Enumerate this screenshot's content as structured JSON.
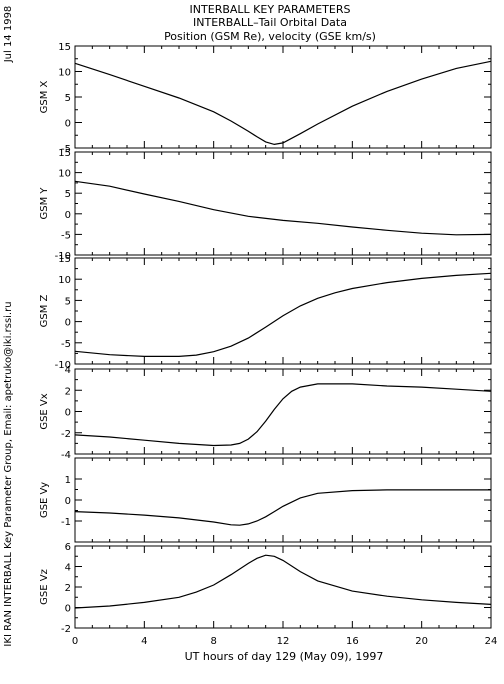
{
  "title_lines": [
    "INTERBALL KEY PARAMETERS",
    "INTERBALL–Tail Orbital Data",
    "Position (GSM Re), velocity (GSE km/s)"
  ],
  "side_date": "Jul 14 1998",
  "side_credit": "IKI RAN INTERBALL Key Parameter Group, Email: apetruko@iki.rssi.ru",
  "chart_data": {
    "type": "line",
    "xlabel": "UT hours of day 129 (May 09), 1997",
    "xlim": [
      0,
      24
    ],
    "xticks": [
      0,
      4,
      8,
      12,
      16,
      20,
      24
    ],
    "xtick_labels": [
      "0",
      "4",
      "8",
      "12",
      "16",
      "20",
      "24"
    ],
    "panels": [
      {
        "name": "gsm-x",
        "ylabel": "GSM X",
        "ylim": [
          -5,
          15
        ],
        "yticks": [
          -5,
          0,
          5,
          10,
          15
        ],
        "ytick_labels": [
          "-5",
          "0",
          "5",
          "10",
          "15"
        ],
        "x": [
          0,
          2,
          4,
          6,
          8,
          9,
          10,
          10.5,
          11,
          11.5,
          12,
          13,
          14,
          16,
          18,
          20,
          22,
          24
        ],
        "y": [
          11.6,
          9.4,
          7.1,
          4.8,
          2.1,
          0.3,
          -1.7,
          -2.8,
          -3.8,
          -4.3,
          -4.0,
          -2.2,
          -0.3,
          3.2,
          6.1,
          8.5,
          10.6,
          12.0
        ]
      },
      {
        "name": "gsm-y",
        "ylabel": "GSM Y",
        "ylim": [
          -10,
          15
        ],
        "yticks": [
          -10,
          -5,
          0,
          5,
          10,
          15
        ],
        "ytick_labels": [
          "-10",
          "-5",
          "0",
          "5",
          "10",
          "15"
        ],
        "x": [
          0,
          2,
          4,
          6,
          8,
          10,
          12,
          14,
          16,
          18,
          20,
          22,
          24
        ],
        "y": [
          7.9,
          6.7,
          4.8,
          3.0,
          1.0,
          -0.6,
          -1.6,
          -2.3,
          -3.2,
          -4.0,
          -4.7,
          -5.1,
          -5.0
        ]
      },
      {
        "name": "gsm-z",
        "ylabel": "GSM Z",
        "ylim": [
          -10,
          15
        ],
        "yticks": [
          -10,
          -5,
          0,
          5,
          10,
          15
        ],
        "ytick_labels": [
          "-10",
          "-5",
          "0",
          "5",
          "10",
          "15"
        ],
        "x": [
          0,
          2,
          4,
          6,
          7,
          8,
          9,
          10,
          11,
          12,
          13,
          14,
          15,
          16,
          18,
          20,
          22,
          24
        ],
        "y": [
          -7.0,
          -7.8,
          -8.2,
          -8.2,
          -7.9,
          -7.1,
          -5.8,
          -3.9,
          -1.3,
          1.4,
          3.7,
          5.5,
          6.8,
          7.8,
          9.2,
          10.2,
          10.9,
          11.4
        ]
      },
      {
        "name": "gse-vx",
        "ylabel": "GSE Vx",
        "ylim": [
          -4,
          4
        ],
        "yticks": [
          -4,
          -2,
          0,
          2,
          4
        ],
        "ytick_labels": [
          "-4",
          "-2",
          "0",
          "2",
          "4"
        ],
        "x": [
          0,
          2,
          4,
          6,
          8,
          9,
          9.5,
          10,
          10.5,
          11,
          11.5,
          12,
          12.5,
          13,
          14,
          15,
          16,
          18,
          20,
          22,
          24
        ],
        "y": [
          -2.2,
          -2.4,
          -2.7,
          -3.0,
          -3.2,
          -3.15,
          -3.0,
          -2.6,
          -1.9,
          -0.9,
          0.2,
          1.2,
          1.9,
          2.3,
          2.6,
          2.6,
          2.6,
          2.4,
          2.3,
          2.1,
          1.9
        ]
      },
      {
        "name": "gse-vy",
        "ylabel": "GSE Vy",
        "ylim": [
          -2,
          2
        ],
        "yticks": [
          -1,
          0,
          1
        ],
        "ytick_labels": [
          "-1",
          "0",
          "1"
        ],
        "x": [
          0,
          2,
          4,
          6,
          8,
          9,
          9.5,
          10,
          10.5,
          11,
          11.5,
          12,
          13,
          14,
          16,
          18,
          20,
          22,
          24
        ],
        "y": [
          -0.55,
          -0.62,
          -0.72,
          -0.85,
          -1.05,
          -1.18,
          -1.2,
          -1.14,
          -1.0,
          -0.8,
          -0.55,
          -0.3,
          0.1,
          0.32,
          0.45,
          0.48,
          0.48,
          0.48,
          0.48
        ]
      },
      {
        "name": "gse-vz",
        "ylabel": "GSE Vz",
        "ylim": [
          -2,
          6
        ],
        "yticks": [
          -2,
          0,
          2,
          4,
          6
        ],
        "ytick_labels": [
          "-2",
          "0",
          "2",
          "4",
          "6"
        ],
        "x": [
          0,
          2,
          4,
          6,
          7,
          8,
          9,
          10,
          10.5,
          11,
          11.5,
          12,
          13,
          14,
          16,
          18,
          20,
          22,
          24
        ],
        "y": [
          -0.05,
          0.15,
          0.5,
          1.0,
          1.5,
          2.2,
          3.2,
          4.3,
          4.8,
          5.1,
          5.0,
          4.6,
          3.5,
          2.6,
          1.6,
          1.1,
          0.75,
          0.5,
          0.3
        ]
      }
    ]
  }
}
